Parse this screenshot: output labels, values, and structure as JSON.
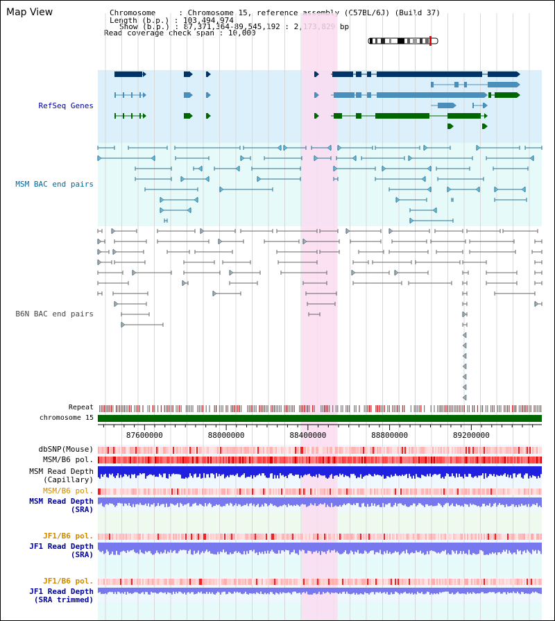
{
  "view_title": "Map View",
  "header": {
    "chromosome_label": "Chromosome    ",
    "chromosome_value": "Chromosome 15, reference assembly (C57BL/6J) (Build 37)",
    "length_label": "Length (b.p.)",
    "length_value": "103,494,974",
    "show_label": "Show (b.p.)",
    "show_value": "87,371,364-89,545,192 : 2,173,829 bp",
    "coverage_label": "Read coverage check span",
    "coverage_value": "10,000"
  },
  "tracks": {
    "refseq": "RefSeq Genes",
    "msm_bac": "MSM BAC end pairs",
    "b6n_bac": "B6N BAC end pairs",
    "repeat": "Repeat",
    "chromosome": "chromosome 15",
    "dbsnp": "dbSNP(Mouse)",
    "msm_b6_pol": "MSM/B6 pol.",
    "msm_depth_cap_1": "MSM Read Depth",
    "msm_depth_cap_2": "(Capillary)",
    "msm_b6_pol_2": "MSM/B6 pol.",
    "msm_depth_sra_1": "MSM Read Depth",
    "msm_depth_sra_2": "(SRA)",
    "jf1_b6_pol": "JF1/B6 pol.",
    "jf1_depth_sra_1": "JF1 Read Depth",
    "jf1_depth_sra_2": "(SRA)",
    "jf1_b6_pol_2": "JF1/B6 pol.",
    "jf1_depth_trim_1": "JF1 Read Depth",
    "jf1_depth_trim_2": "(SRA trimmed)"
  },
  "axis": {
    "ticks": [
      "87600000",
      "88000000",
      "88400000",
      "88800000",
      "89200000"
    ],
    "tick_values": [
      87600000,
      88000000,
      88400000,
      88800000,
      89200000
    ],
    "range": [
      87371364,
      89545192
    ]
  },
  "highlight_range": [
    88370000,
    88545000
  ],
  "colors": {
    "refseq_bg": "#dbf0fa",
    "bac_bg": "#e6fafa",
    "highlight": "#fadcf0",
    "gene_dark": "#003366",
    "gene_mid": "#4a8fbb",
    "gene_green": "#006600",
    "msm_feature": "#2a7090",
    "b6n_feature": "#666666",
    "chrom_bar": "#006600",
    "depth_blue": "#2020e0",
    "depth_light": "#7777ee",
    "label_blue": "#000099",
    "label_teal": "#006699",
    "label_orange": "#cc8800"
  }
}
